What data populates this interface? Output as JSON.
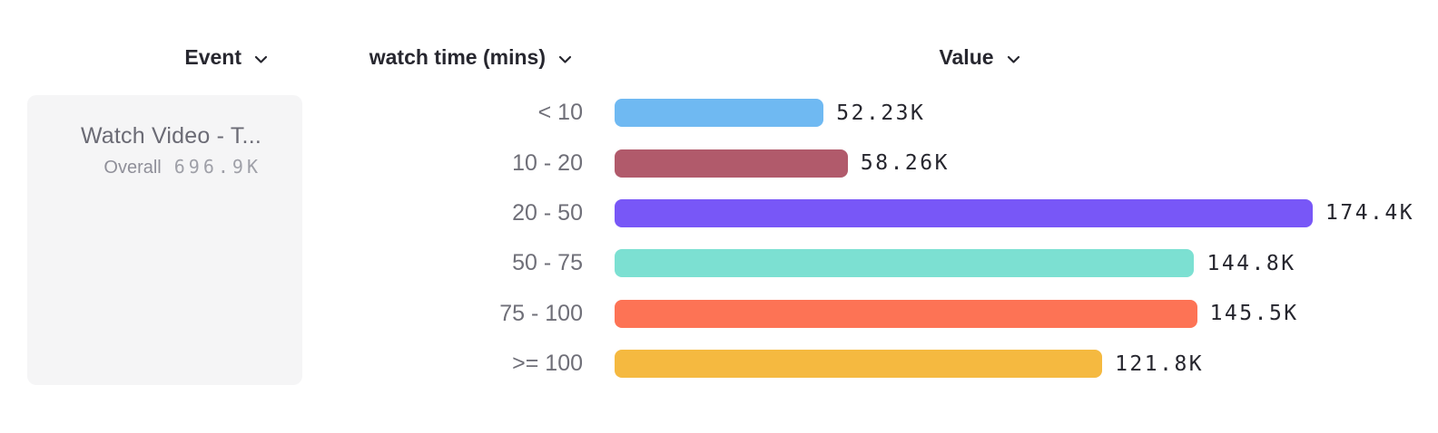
{
  "header": {
    "columns": [
      {
        "label": "Event"
      },
      {
        "label": "watch time (mins)"
      },
      {
        "label": "Value"
      }
    ]
  },
  "event_card": {
    "name": "Watch Video - T...",
    "overall_label": "Overall",
    "overall_value": "696.9K"
  },
  "chart_data": {
    "type": "bar",
    "orientation": "horizontal",
    "title": "",
    "xlabel": "Value",
    "ylabel": "watch time (mins)",
    "categories": [
      "< 10",
      "10 - 20",
      "20 - 50",
      "50 - 75",
      "75 - 100",
      ">= 100"
    ],
    "values": [
      52.23,
      58.26,
      174.4,
      144.8,
      145.5,
      121.8
    ],
    "unit": "K",
    "value_labels": [
      "52.23K",
      "58.26K",
      "174.4K",
      "144.8K",
      "145.5K",
      "121.8K"
    ],
    "bar_colors": [
      "#6FB9F2",
      "#B15A6B",
      "#7857F7",
      "#7CE0D2",
      "#FD7355",
      "#F5B940"
    ],
    "xlim": [
      0,
      174.4
    ],
    "grid": false,
    "legend": false,
    "series_total_label": "Overall",
    "series_total_value": "696.9K"
  },
  "colors": {
    "card_bg": "#f5f5f6",
    "header_text": "#27272f",
    "category_text": "#6f6f78",
    "value_text": "#26262e",
    "card_title_text": "#6b6b75",
    "card_overall_text": "#8f8f99",
    "card_value_text": "#9fa0a8"
  }
}
